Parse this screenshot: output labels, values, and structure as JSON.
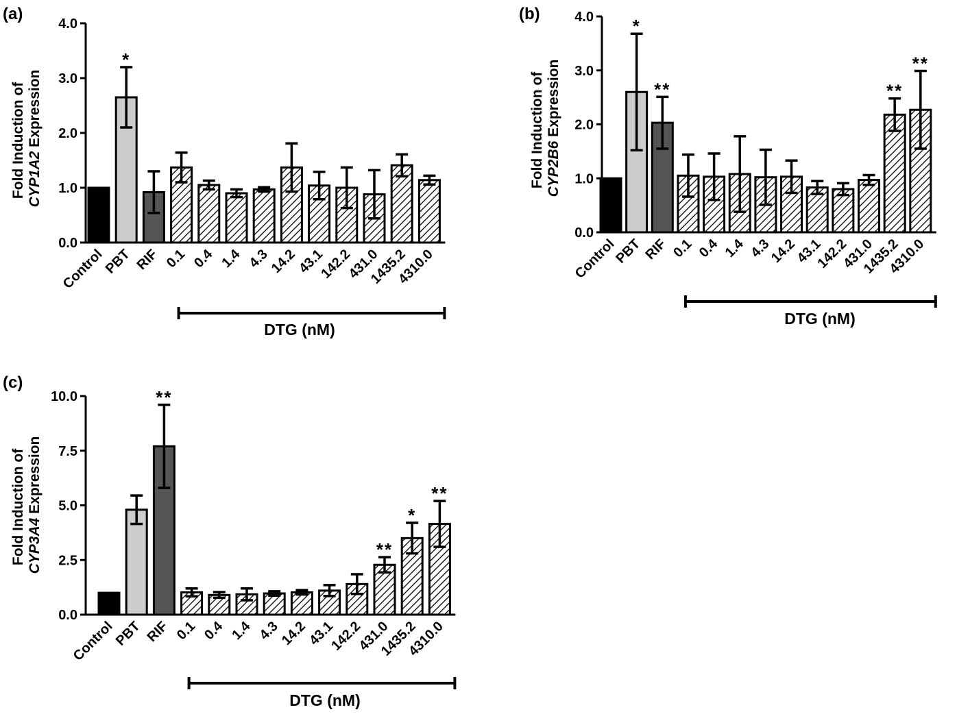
{
  "figure": {
    "bracket_label": "DTG (nM)",
    "colors": {
      "control": "#000000",
      "pbt": "#cccccc",
      "rif": "#555555",
      "hatch_fill": "#ffffff",
      "hatch_stroke": "#000000",
      "axis": "#000000"
    }
  },
  "chart_data": [
    {
      "panel_label": "(a)",
      "type": "bar",
      "ylabel_line1": "Fold Induction of",
      "ylabel_gene": "CYP1A2",
      "ylabel_suffix": " Expression",
      "ylim": [
        0,
        4
      ],
      "yticks": [
        "0.0",
        "1.0",
        "2.0",
        "3.0",
        "4.0"
      ],
      "ytick_values": [
        0,
        1,
        2,
        3,
        4
      ],
      "categories": [
        "Control",
        "PBT",
        "RIF",
        "0.1",
        "0.4",
        "1.4",
        "4.3",
        "14.2",
        "43.1",
        "142.2",
        "431.0",
        "1435.2",
        "4310.0"
      ],
      "values": [
        1.0,
        2.65,
        0.92,
        1.37,
        1.05,
        0.9,
        0.97,
        1.37,
        1.04,
        1.0,
        0.88,
        1.41,
        1.14
      ],
      "errors": [
        0.0,
        0.55,
        0.38,
        0.27,
        0.08,
        0.07,
        0.04,
        0.44,
        0.25,
        0.37,
        0.44,
        0.2,
        0.08
      ],
      "significance": [
        "",
        "*",
        "",
        "",
        "",
        "",
        "",
        "",
        "",
        "",
        "",
        "",
        ""
      ],
      "bar_styles": [
        "control",
        "pbt",
        "rif",
        "hatch",
        "hatch",
        "hatch",
        "hatch",
        "hatch",
        "hatch",
        "hatch",
        "hatch",
        "hatch",
        "hatch"
      ],
      "bracket": {
        "start_category": "0.1",
        "end_category": "4310.0",
        "label": "DTG (nM)"
      },
      "grid": false,
      "legend": "none"
    },
    {
      "panel_label": "(b)",
      "type": "bar",
      "ylabel_line1": "Fold Induction of",
      "ylabel_gene": "CYP2B6",
      "ylabel_suffix": " Expression",
      "ylim": [
        0,
        4
      ],
      "yticks": [
        "0.0",
        "1.0",
        "2.0",
        "3.0",
        "4.0"
      ],
      "ytick_values": [
        0,
        1,
        2,
        3,
        4
      ],
      "categories": [
        "Control",
        "PBT",
        "RIF",
        "0.1",
        "0.4",
        "1.4",
        "4.3",
        "14.2",
        "43.1",
        "142.2",
        "431.0",
        "1435.2",
        "4310.0"
      ],
      "values": [
        1.0,
        2.6,
        2.03,
        1.05,
        1.03,
        1.08,
        1.02,
        1.03,
        0.83,
        0.8,
        0.97,
        2.18,
        2.27
      ],
      "errors": [
        0.0,
        1.08,
        0.48,
        0.39,
        0.43,
        0.7,
        0.51,
        0.3,
        0.12,
        0.11,
        0.09,
        0.3,
        0.72
      ],
      "significance": [
        "",
        "*",
        "**",
        "",
        "",
        "",
        "",
        "",
        "",
        "",
        "",
        "**",
        "**"
      ],
      "bar_styles": [
        "control",
        "pbt",
        "rif",
        "hatch",
        "hatch",
        "hatch",
        "hatch",
        "hatch",
        "hatch",
        "hatch",
        "hatch",
        "hatch",
        "hatch"
      ],
      "bracket": {
        "start_category": "0.1",
        "end_category": "4310.0",
        "label": "DTG (nM)"
      },
      "grid": false,
      "legend": "none"
    },
    {
      "panel_label": "(c)",
      "type": "bar",
      "ylabel_line1": "Fold Induction of",
      "ylabel_gene": "CYP3A4",
      "ylabel_suffix": " Expression",
      "ylim": [
        0,
        10
      ],
      "yticks": [
        "0.0",
        "2.5",
        "5.0",
        "7.5",
        "10.0"
      ],
      "ytick_values": [
        0,
        2.5,
        5,
        7.5,
        10
      ],
      "categories": [
        "Control",
        "PBT",
        "RIF",
        "0.1",
        "0.4",
        "1.4",
        "4.3",
        "14.2",
        "43.1",
        "142.2",
        "431.0",
        "1435.2",
        "4310.0"
      ],
      "values": [
        1.0,
        4.8,
        7.7,
        1.02,
        0.9,
        0.93,
        0.97,
        1.02,
        1.1,
        1.4,
        2.28,
        3.5,
        4.15
      ],
      "errors": [
        0.0,
        0.65,
        1.9,
        0.18,
        0.13,
        0.27,
        0.1,
        0.1,
        0.25,
        0.45,
        0.35,
        0.7,
        1.05
      ],
      "significance": [
        "",
        "",
        "**",
        "",
        "",
        "",
        "",
        "",
        "",
        "",
        "**",
        "*",
        "**"
      ],
      "bar_styles": [
        "control",
        "pbt",
        "rif",
        "hatch",
        "hatch",
        "hatch",
        "hatch",
        "hatch",
        "hatch",
        "hatch",
        "hatch",
        "hatch",
        "hatch"
      ],
      "bracket": {
        "start_category": "0.1",
        "end_category": "4310.0",
        "label": "DTG (nM)"
      },
      "grid": false,
      "legend": "none"
    }
  ]
}
